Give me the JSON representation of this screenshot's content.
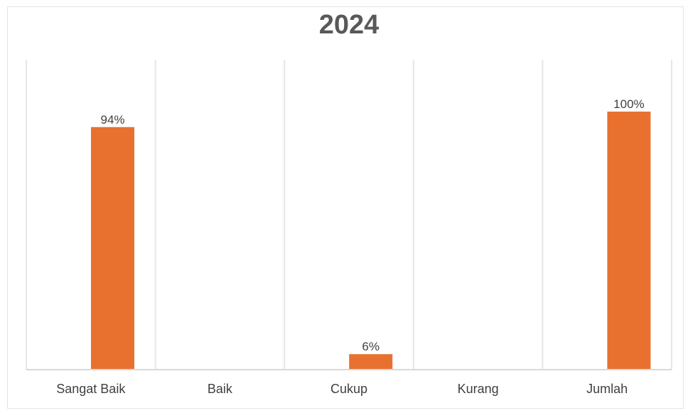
{
  "chart_data": {
    "type": "bar",
    "title": "2024",
    "categories": [
      "Sangat Baik",
      "Baik",
      "Cukup",
      "Kurang",
      "Jumlah"
    ],
    "values": [
      94,
      null,
      6,
      null,
      100
    ],
    "data_labels": [
      "94%",
      "",
      "6%",
      "",
      "100%"
    ],
    "xlabel": "",
    "ylabel": "",
    "ylim": [
      0,
      120
    ],
    "grid": "vertical category separators",
    "legend": "none",
    "bar_color": "#e8712f"
  }
}
